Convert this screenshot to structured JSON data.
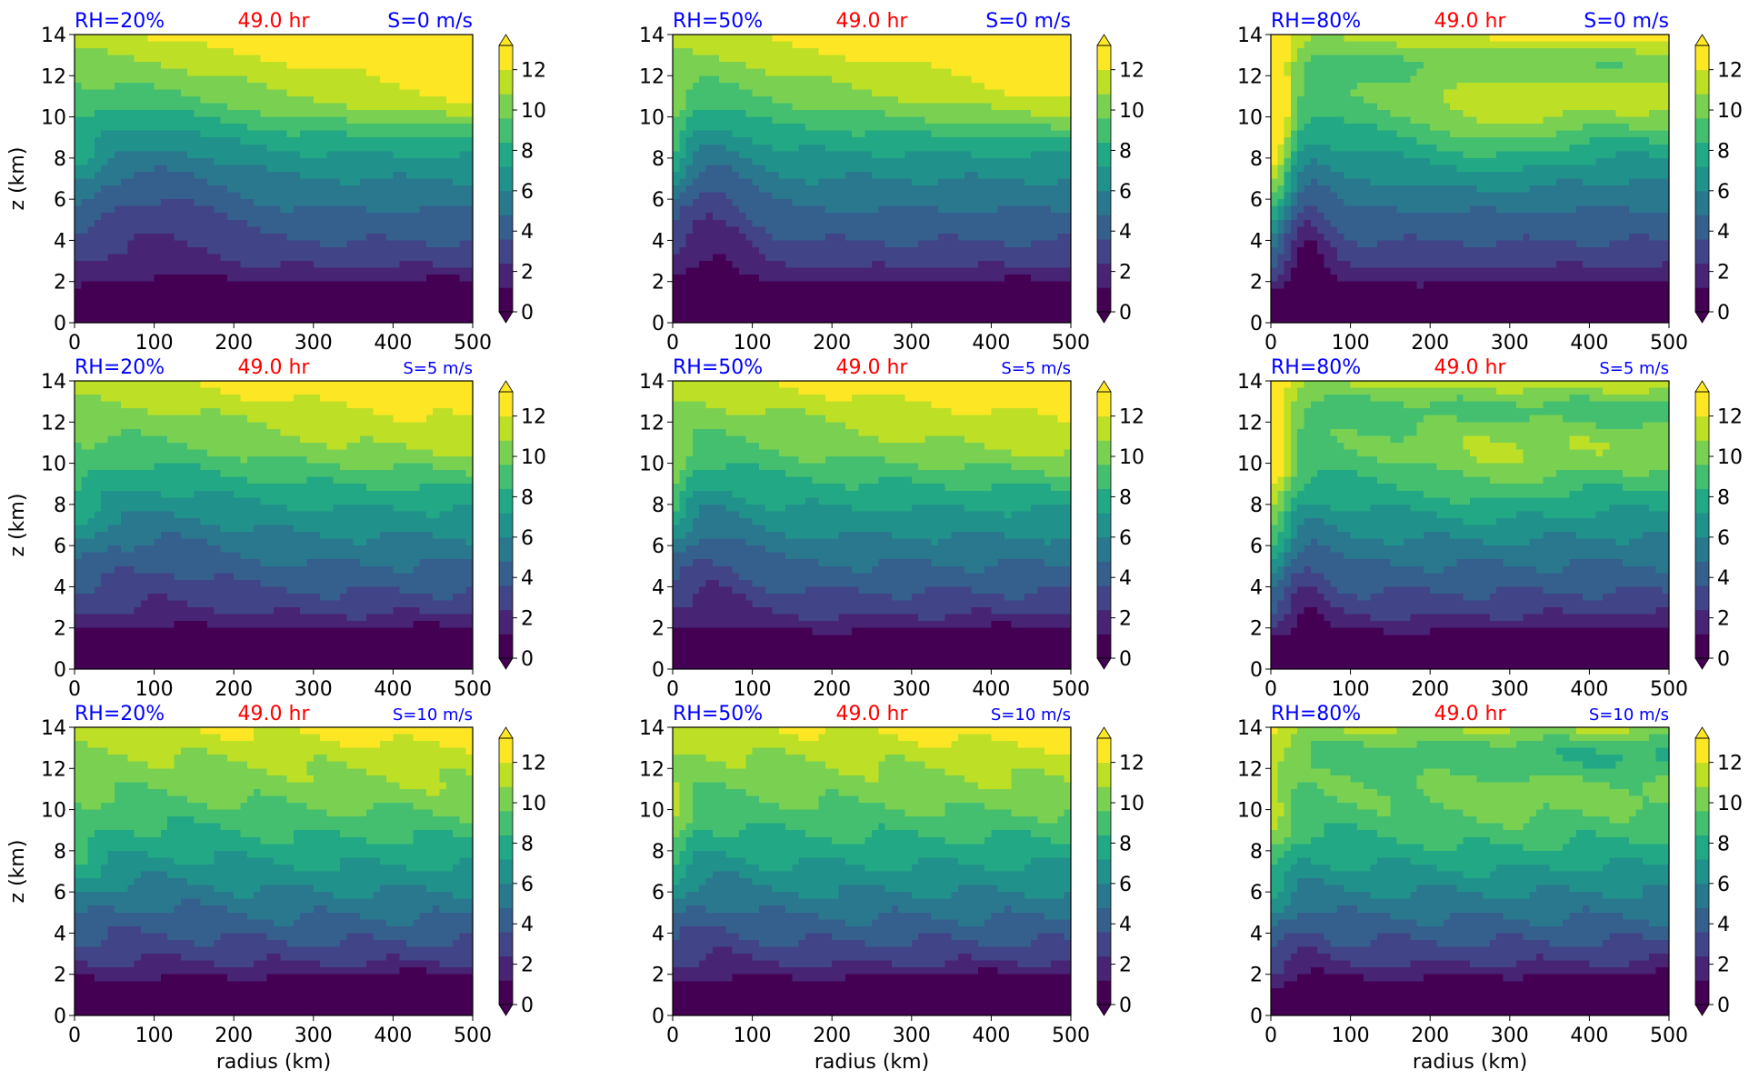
{
  "figure": {
    "time_label": "49.0 hr",
    "ylabel": "z (km)",
    "xlabel": "radius (km)",
    "x_ticks": [
      "0",
      "100",
      "200",
      "300",
      "400",
      "500"
    ],
    "y_ticks": [
      "0",
      "2",
      "4",
      "6",
      "8",
      "10",
      "12",
      "14"
    ],
    "cbar_ticks": [
      "0",
      "2",
      "4",
      "6",
      "8",
      "10",
      "12"
    ],
    "colors": {
      "blue_label": "#0000ff",
      "red_label": "#ff0000",
      "viridis": [
        "#440154",
        "#482475",
        "#414487",
        "#355f8d",
        "#2a788e",
        "#21918c",
        "#22a884",
        "#44bf70",
        "#7ad151",
        "#bddf26",
        "#fde725"
      ]
    }
  },
  "chart_data": [
    {
      "type": "heatmap",
      "rh": "RH=20%",
      "time": "49.0 hr",
      "shear": "S=0 m/s",
      "xlabel": "",
      "ylabel": "z (km)",
      "xlim": [
        0,
        500
      ],
      "ylim": [
        0,
        14
      ],
      "levels": [
        0,
        1.2,
        2.4,
        3.6,
        4.8,
        6,
        7.2,
        8.4,
        9.6,
        10.8,
        12,
        13.2
      ],
      "colorbar_ticks": [
        0,
        2,
        4,
        6,
        8,
        10,
        12
      ],
      "colorbar_extend": "both"
    },
    {
      "type": "heatmap",
      "rh": "RH=50%",
      "time": "49.0 hr",
      "shear": "S=0 m/s",
      "xlabel": "",
      "ylabel": "",
      "xlim": [
        0,
        500
      ],
      "ylim": [
        0,
        14
      ],
      "levels": [
        0,
        1.2,
        2.4,
        3.6,
        4.8,
        6,
        7.2,
        8.4,
        9.6,
        10.8,
        12,
        13.2
      ],
      "colorbar_ticks": [
        0,
        2,
        4,
        6,
        8,
        10,
        12
      ],
      "colorbar_extend": "both"
    },
    {
      "type": "heatmap",
      "rh": "RH=80%",
      "time": "49.0 hr",
      "shear": "S=0 m/s",
      "xlabel": "",
      "ylabel": "",
      "xlim": [
        0,
        500
      ],
      "ylim": [
        0,
        14
      ],
      "levels": [
        0,
        1.2,
        2.4,
        3.6,
        4.8,
        6,
        7.2,
        8.4,
        9.6,
        10.8,
        12,
        13.2
      ],
      "colorbar_ticks": [
        0,
        2,
        4,
        6,
        8,
        10,
        12
      ],
      "colorbar_extend": "both"
    },
    {
      "type": "heatmap",
      "rh": "RH=20%",
      "time": "49.0 hr",
      "shear": "S=5 m/s",
      "xlabel": "",
      "ylabel": "z (km)",
      "xlim": [
        0,
        500
      ],
      "ylim": [
        0,
        14
      ],
      "levels": [
        0,
        1.2,
        2.4,
        3.6,
        4.8,
        6,
        7.2,
        8.4,
        9.6,
        10.8,
        12,
        13.2
      ],
      "colorbar_ticks": [
        0,
        2,
        4,
        6,
        8,
        10,
        12
      ],
      "colorbar_extend": "both"
    },
    {
      "type": "heatmap",
      "rh": "RH=50%",
      "time": "49.0 hr",
      "shear": "S=5 m/s",
      "xlabel": "",
      "ylabel": "",
      "xlim": [
        0,
        500
      ],
      "ylim": [
        0,
        14
      ],
      "levels": [
        0,
        1.2,
        2.4,
        3.6,
        4.8,
        6,
        7.2,
        8.4,
        9.6,
        10.8,
        12,
        13.2
      ],
      "colorbar_ticks": [
        0,
        2,
        4,
        6,
        8,
        10,
        12
      ],
      "colorbar_extend": "both"
    },
    {
      "type": "heatmap",
      "rh": "RH=80%",
      "time": "49.0 hr",
      "shear": "S=5 m/s",
      "xlabel": "",
      "ylabel": "",
      "xlim": [
        0,
        500
      ],
      "ylim": [
        0,
        14
      ],
      "levels": [
        0,
        1.2,
        2.4,
        3.6,
        4.8,
        6,
        7.2,
        8.4,
        9.6,
        10.8,
        12,
        13.2
      ],
      "colorbar_ticks": [
        0,
        2,
        4,
        6,
        8,
        10,
        12
      ],
      "colorbar_extend": "both"
    },
    {
      "type": "heatmap",
      "rh": "RH=20%",
      "time": "49.0 hr",
      "shear": "S=10 m/s",
      "xlabel": "radius (km)",
      "ylabel": "z (km)",
      "xlim": [
        0,
        500
      ],
      "ylim": [
        0,
        14
      ],
      "levels": [
        0,
        1.2,
        2.4,
        3.6,
        4.8,
        6,
        7.2,
        8.4,
        9.6,
        10.8,
        12,
        13.2
      ],
      "colorbar_ticks": [
        0,
        2,
        4,
        6,
        8,
        10,
        12
      ],
      "colorbar_extend": "both"
    },
    {
      "type": "heatmap",
      "rh": "RH=50%",
      "time": "49.0 hr",
      "shear": "S=10 m/s",
      "xlabel": "radius (km)",
      "ylabel": "",
      "xlim": [
        0,
        500
      ],
      "ylim": [
        0,
        14
      ],
      "levels": [
        0,
        1.2,
        2.4,
        3.6,
        4.8,
        6,
        7.2,
        8.4,
        9.6,
        10.8,
        12,
        13.2
      ],
      "colorbar_ticks": [
        0,
        2,
        4,
        6,
        8,
        10,
        12
      ],
      "colorbar_extend": "both"
    },
    {
      "type": "heatmap",
      "rh": "RH=80%",
      "time": "49.0 hr",
      "shear": "S=10 m/s",
      "xlabel": "radius (km)",
      "ylabel": "",
      "xlim": [
        0,
        500
      ],
      "ylim": [
        0,
        14
      ],
      "levels": [
        0,
        1.2,
        2.4,
        3.6,
        4.8,
        6,
        7.2,
        8.4,
        9.6,
        10.8,
        12,
        13.2
      ],
      "colorbar_ticks": [
        0,
        2,
        4,
        6,
        8,
        10,
        12
      ],
      "colorbar_extend": "both"
    }
  ]
}
